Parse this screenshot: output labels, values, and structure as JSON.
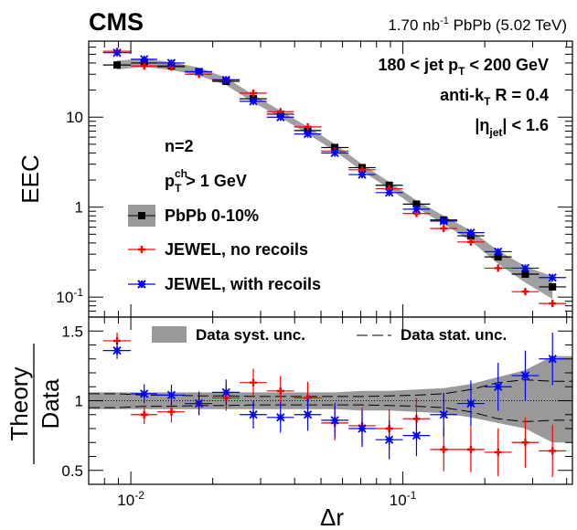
{
  "header": {
    "experiment": "CMS",
    "lumi_value": "1.70 nb",
    "lumi_sup": "-1",
    "lumi_tail": " PbPb (5.02 TeV)"
  },
  "annotations": {
    "cut_prefix": "180 < jet p",
    "cut_sub": "T",
    "cut_suffix": " < 200 GeV",
    "algo_prefix": "anti-k",
    "algo_sub": "T",
    "algo_suffix": " R = 0.4",
    "eta_bar_open": "|η",
    "eta_sub": "jet",
    "eta_suffix": "| < 1.6",
    "n_label": "n=2",
    "pt_p": "p",
    "pt_sup": "ch",
    "pt_sub": "T",
    "pt_suffix": " > 1 GeV"
  },
  "chart_data": [
    {
      "type": "scatter",
      "panel": "top",
      "ylabel": "EEC",
      "xlabel": "",
      "xscale": "log",
      "yscale": "log",
      "xlim": [
        0.007,
        0.42
      ],
      "ylim": [
        0.06,
        70
      ],
      "x_ticks": [
        {
          "value": 0.01,
          "base": "10",
          "exp": "-2"
        },
        {
          "value": 0.1,
          "base": "10",
          "exp": "-1"
        }
      ],
      "y_ticks": [
        {
          "value": 0.1,
          "base": "10",
          "exp": "-1",
          "label": ""
        },
        {
          "value": 1,
          "base": "",
          "exp": "",
          "label": "1"
        },
        {
          "value": 10,
          "base": "",
          "exp": "",
          "label": "10"
        }
      ],
      "legend": [
        {
          "name": "PbPb 0-10%",
          "marker": "square",
          "color": "#000000",
          "band": "#999999"
        },
        {
          "name": "JEWEL, no recoils",
          "marker": "plus",
          "color": "#ff0000"
        },
        {
          "name": "JEWEL, with recoils",
          "marker": "star",
          "color": "#0000ff"
        }
      ],
      "bin_edges": [
        0.0079,
        0.01,
        0.0125,
        0.0158,
        0.0199,
        0.0251,
        0.0316,
        0.0398,
        0.0501,
        0.0631,
        0.0794,
        0.1,
        0.1259,
        0.1585,
        0.1995,
        0.2512,
        0.3162,
        0.3981
      ],
      "series": [
        {
          "name": "PbPb 0-10%",
          "x": [
            0.0089,
            0.0112,
            0.0141,
            0.0178,
            0.0224,
            0.0282,
            0.0355,
            0.0447,
            0.0562,
            0.0708,
            0.0891,
            0.1122,
            0.1413,
            0.1778,
            0.2239,
            0.2818,
            0.3548
          ],
          "y": [
            38,
            40,
            37,
            32,
            25,
            16,
            10.8,
            7.1,
            4.6,
            2.75,
            1.75,
            1.08,
            0.72,
            0.48,
            0.28,
            0.18,
            0.13
          ],
          "band_low": [
            34,
            36,
            33.5,
            29,
            22.7,
            14.6,
            9.9,
            6.5,
            4.2,
            2.52,
            1.6,
            0.98,
            0.65,
            0.42,
            0.235,
            0.145,
            0.095
          ],
          "band_high": [
            42.5,
            44.5,
            41,
            35.5,
            27.5,
            17.7,
            11.8,
            7.8,
            5.05,
            3.0,
            1.91,
            1.19,
            0.8,
            0.55,
            0.33,
            0.22,
            0.17
          ]
        },
        {
          "name": "JEWEL, no recoils",
          "x": [
            0.0089,
            0.0112,
            0.0141,
            0.0178,
            0.0224,
            0.0282,
            0.0355,
            0.0447,
            0.0562,
            0.0708,
            0.0891,
            0.1122,
            0.1413,
            0.1778,
            0.2239,
            0.2818,
            0.3548
          ],
          "y": [
            54,
            37,
            36,
            30,
            26,
            18.5,
            11.5,
            7.8,
            4.2,
            2.6,
            1.6,
            0.85,
            0.58,
            0.41,
            0.21,
            0.115,
            0.085
          ]
        },
        {
          "name": "JEWEL, with recoils",
          "x": [
            0.0089,
            0.0112,
            0.0141,
            0.0178,
            0.0224,
            0.0282,
            0.0355,
            0.0447,
            0.0562,
            0.0708,
            0.0891,
            0.1122,
            0.1413,
            0.1778,
            0.2239,
            0.2818,
            0.3548
          ],
          "y": [
            52,
            44,
            40,
            32,
            26,
            15,
            10,
            6.5,
            4,
            2.3,
            1.45,
            0.95,
            0.7,
            0.52,
            0.32,
            0.21,
            0.165
          ]
        }
      ]
    },
    {
      "type": "scatter",
      "panel": "bottom",
      "ylabel_num": "Theory",
      "ylabel_den": "Data",
      "xlabel": "Δr",
      "xscale": "log",
      "xlim": [
        0.007,
        0.42
      ],
      "ylim": [
        0.4,
        1.6
      ],
      "y_ticks": [
        {
          "value": 0.5,
          "label": "0.5"
        },
        {
          "value": 1,
          "label": "1"
        },
        {
          "value": 1.5,
          "label": "1.5"
        }
      ],
      "legend": [
        {
          "name": "Data syst. unc.",
          "style": "band",
          "color": "#999999"
        },
        {
          "name": "Data stat. unc.",
          "style": "dashed",
          "color": "#000000"
        }
      ],
      "reference_line": 1,
      "x": [
        0.0089,
        0.0112,
        0.0141,
        0.0178,
        0.0224,
        0.0282,
        0.0355,
        0.0447,
        0.0562,
        0.0708,
        0.0891,
        0.1122,
        0.1413,
        0.1778,
        0.2239,
        0.2818,
        0.3548
      ],
      "syst_low": [
        0.94,
        0.94,
        0.94,
        0.94,
        0.94,
        0.94,
        0.94,
        0.94,
        0.94,
        0.93,
        0.93,
        0.92,
        0.91,
        0.88,
        0.84,
        0.8,
        0.7
      ],
      "syst_high": [
        1.06,
        1.06,
        1.06,
        1.06,
        1.06,
        1.06,
        1.06,
        1.06,
        1.06,
        1.07,
        1.07,
        1.08,
        1.09,
        1.12,
        1.17,
        1.22,
        1.32
      ],
      "stat_low": [
        0.95,
        0.96,
        0.96,
        0.965,
        0.965,
        0.97,
        0.97,
        0.97,
        0.97,
        0.97,
        0.965,
        0.96,
        0.95,
        0.92,
        0.87,
        0.85,
        0.86
      ],
      "stat_high": [
        1.05,
        1.04,
        1.04,
        1.035,
        1.035,
        1.03,
        1.03,
        1.03,
        1.03,
        1.03,
        1.035,
        1.04,
        1.05,
        1.08,
        1.13,
        1.15,
        1.14
      ],
      "series": [
        {
          "name": "JEWEL, no recoils",
          "y": [
            1.43,
            0.9,
            0.92,
            0.98,
            1.02,
            1.13,
            1.07,
            1.02,
            0.84,
            0.82,
            0.8,
            0.87,
            0.65,
            0.65,
            0.63,
            0.7,
            0.64
          ]
        },
        {
          "name": "JEWEL, with recoils",
          "y": [
            1.36,
            1.05,
            1.04,
            0.98,
            1.06,
            0.9,
            0.88,
            0.9,
            0.86,
            0.8,
            0.72,
            0.75,
            0.9,
            0.98,
            1.1,
            1.18,
            1.3
          ]
        }
      ]
    }
  ]
}
